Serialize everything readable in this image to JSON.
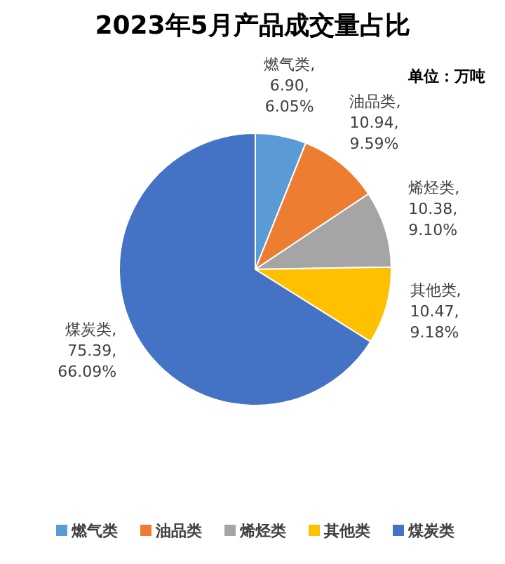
{
  "chart_data": {
    "type": "pie",
    "title": "2023年5月产品成交量占比",
    "subtitle": "单位：万吨",
    "categories": [
      "燃气类",
      "油品类",
      "烯烃类",
      "其他类",
      "煤炭类"
    ],
    "values": [
      6.9,
      10.94,
      10.38,
      10.47,
      75.39
    ],
    "colors": [
      "#5b9bd5",
      "#ed7d31",
      "#a5a5a5",
      "#ffc000",
      "#4472c4"
    ],
    "value_labels": [
      "燃气类,\n6.90,\n6.05%",
      "油品类,\n10.94,\n9.59%",
      "烯烃类,\n10.38,\n9.10%",
      "其他类,\n10.47,\n9.18%",
      "煤炭类,\n75.39,\n66.09%"
    ],
    "legend": "bottom"
  }
}
